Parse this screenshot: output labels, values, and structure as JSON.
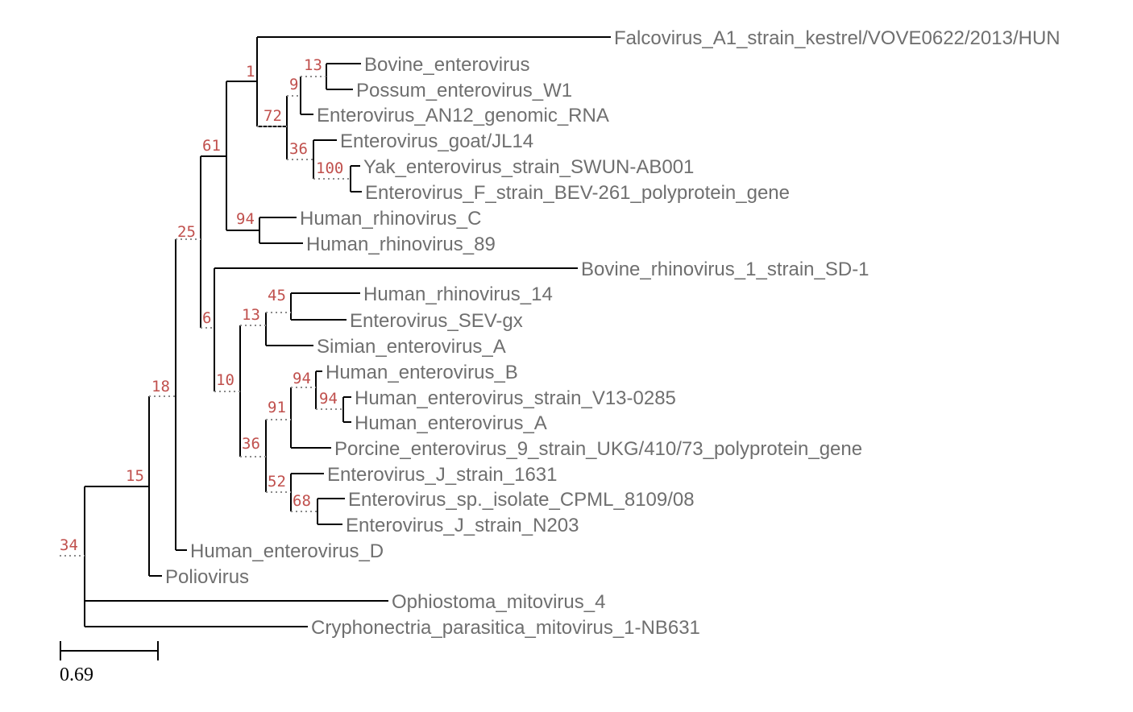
{
  "tree": {
    "scale_bar": {
      "value_label": "0.69"
    },
    "support_values": {
      "n34": "34",
      "n15": "15",
      "n18": "18",
      "n25": "25",
      "n61": "61",
      "n1": "1",
      "n72": "72",
      "n9": "9",
      "n13a": "13",
      "n36a": "36",
      "n100": "100",
      "n94a": "94",
      "n6": "6",
      "n10": "10",
      "n13b": "13",
      "n45": "45",
      "n36b": "36",
      "n91": "91",
      "n94b": "94",
      "n94c": "94",
      "n52": "52",
      "n68": "68"
    },
    "leaves": {
      "falcovirus": "Falcovirus_A1_strain_kestrel/VOVE0622/2013/HUN",
      "bovine_enterovirus": "Bovine_enterovirus",
      "possum_enterovirus": "Possum_enterovirus_W1",
      "enterovirus_an12": "Enterovirus_AN12_genomic_RNA",
      "enterovirus_goat": "Enterovirus_goat/JL14",
      "yak_enterovirus": "Yak_enterovirus_strain_SWUN-AB001",
      "enterovirus_f": "Enterovirus_F_strain_BEV-261_polyprotein_gene",
      "human_rhinovirus_c": "Human_rhinovirus_C",
      "human_rhinovirus_89": "Human_rhinovirus_89",
      "bovine_rhinovirus": "Bovine_rhinovirus_1_strain_SD-1",
      "human_rhinovirus_14": "Human_rhinovirus_14",
      "enterovirus_sev": "Enterovirus_SEV-gx",
      "simian_enterovirus": "Simian_enterovirus_A",
      "human_enterovirus_b": "Human_enterovirus_B",
      "human_enterovirus_v13": "Human_enterovirus_strain_V13-0285",
      "human_enterovirus_a": "Human_enterovirus_A",
      "porcine_enterovirus": "Porcine_enterovirus_9_strain_UKG/410/73_polyprotein_gene",
      "enterovirus_j_1631": "Enterovirus_J_strain_1631",
      "enterovirus_sp_cpml": "Enterovirus_sp._isolate_CPML_8109/08",
      "enterovirus_j_n203": "Enterovirus_J_strain_N203",
      "human_enterovirus_d": "Human_enterovirus_D",
      "poliovirus": "Poliovirus",
      "ophiostoma": "Ophiostoma_mitovirus_4",
      "cryphonectria": "Cryphonectria_parasitica_mitovirus_1-NB631"
    }
  }
}
